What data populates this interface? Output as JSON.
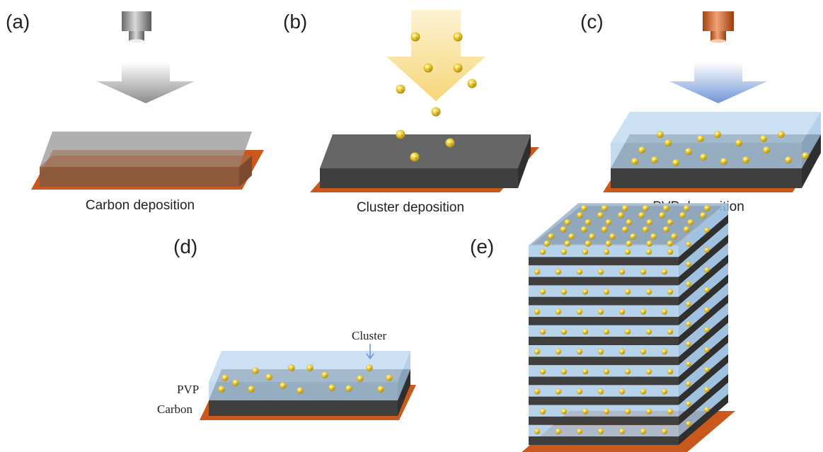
{
  "panels": {
    "a": {
      "label": "(a)",
      "caption": "Carbon deposition"
    },
    "b": {
      "label": "(b)",
      "caption": "Cluster deposition"
    },
    "c": {
      "label": "(c)",
      "caption": "PVP deposition"
    },
    "d": {
      "label": "(d)",
      "layer_labels": {
        "cluster": "Cluster",
        "pvp": "PVP",
        "carbon": "Carbon"
      }
    },
    "e": {
      "label": "(e)",
      "layer_count": 10
    }
  },
  "colors": {
    "substrate": "#c8581c",
    "carbon_top": "#666666",
    "carbon_side": "#3f3f3f",
    "pvp": "#b9d6ef",
    "cluster": "#d8b820",
    "source_gray": "#8a8a8a",
    "source_copper": "#c8581c",
    "arrow_gray": "#8c8c8c",
    "arrow_yellow": "#f6d67a",
    "arrow_blue": "#6f95d6"
  },
  "icons": {
    "source_a": "sputter-source-gray-icon",
    "source_c": "sputter-source-copper-icon",
    "cluster": "nanocluster-icon"
  }
}
